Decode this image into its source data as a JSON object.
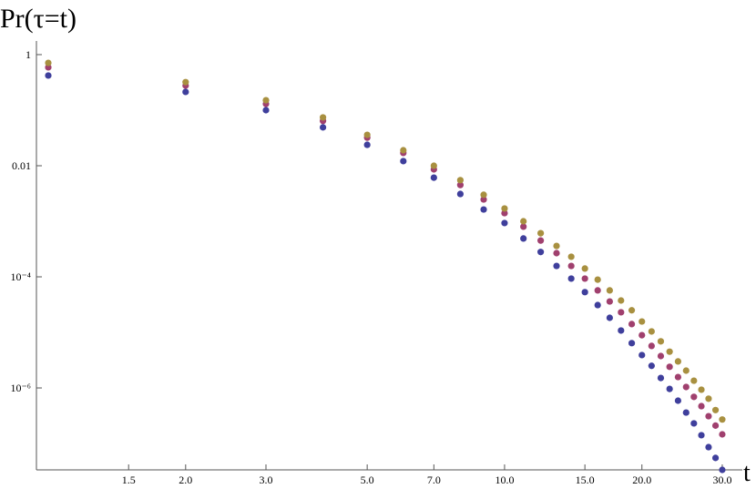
{
  "chart_data": {
    "type": "scatter",
    "y_label": "Pr(τ=t)",
    "x_label": "t",
    "x_scale": "log",
    "y_scale": "log",
    "xlim": [
      0.942,
      33.2
    ],
    "ylim": [
      3.35e-08,
      1.76
    ],
    "xticks": [
      1.5,
      {
        "value": 2,
        "label": "2.0"
      },
      {
        "value": 3,
        "label": "3.0"
      },
      {
        "value": 5,
        "label": "5.0"
      },
      {
        "value": 7,
        "label": "7.0"
      },
      {
        "value": 10,
        "label": "10.0"
      },
      {
        "value": 15,
        "label": "15.0"
      },
      {
        "value": 20,
        "label": "20.0"
      },
      {
        "value": 30,
        "label": "30.0"
      }
    ],
    "yticks": [
      1,
      0.01,
      {
        "value": 0.0001,
        "label": "10⁻⁴"
      },
      {
        "value": 1e-06,
        "label": "10⁻⁶"
      }
    ],
    "x": [
      1,
      2,
      3,
      4,
      5,
      6,
      7,
      8,
      9,
      10,
      11,
      12,
      13,
      14,
      15,
      16,
      17,
      18,
      19,
      20,
      21,
      22,
      23,
      24,
      25,
      26,
      27,
      28,
      29,
      30
    ],
    "series": [
      {
        "color": "#3f3f9c",
        "values": [
          0.42,
          0.213,
          0.1,
          0.049,
          0.0238,
          0.0121,
          0.0061,
          0.0031,
          0.00163,
          0.00093,
          0.00049,
          0.00028,
          0.000157,
          9.3e-05,
          5.3e-05,
          3.1e-05,
          1.83e-05,
          1.08e-05,
          6.4e-06,
          3.9e-06,
          2.5e-06,
          1.51e-06,
          9.6e-07,
          5.9e-07,
          3.6e-07,
          2.3e-07,
          1.41e-07,
          8.6e-08,
          5.5e-08,
          3.35e-08
        ]
      },
      {
        "color": "#a0406e",
        "values": [
          0.59,
          0.277,
          0.13,
          0.064,
          0.032,
          0.017,
          0.0086,
          0.0045,
          0.00247,
          0.0014,
          0.0008,
          0.00045,
          0.000267,
          0.000157,
          9.3e-05,
          5.7e-05,
          3.6e-05,
          2.3e-05,
          1.41e-05,
          8.9e-06,
          5.7e-06,
          3.75e-06,
          2.4e-06,
          1.57e-06,
          1.04e-06,
          6.9e-07,
          4.7e-07,
          3.1e-07,
          2.1e-07,
          1.46e-07
        ]
      },
      {
        "color": "#a89040",
        "values": [
          0.71,
          0.32,
          0.151,
          0.074,
          0.036,
          0.019,
          0.01,
          0.0055,
          0.003,
          0.0017,
          0.001,
          0.00061,
          0.00036,
          0.00023,
          0.000141,
          8.9e-05,
          5.7e-05,
          3.75e-05,
          2.5e-05,
          1.57e-05,
          1.04e-05,
          6.9e-06,
          4.5e-06,
          3e-06,
          2.05e-06,
          1.35e-06,
          9.3e-07,
          6.4e-07,
          4e-07,
          2.7e-07
        ]
      }
    ]
  }
}
